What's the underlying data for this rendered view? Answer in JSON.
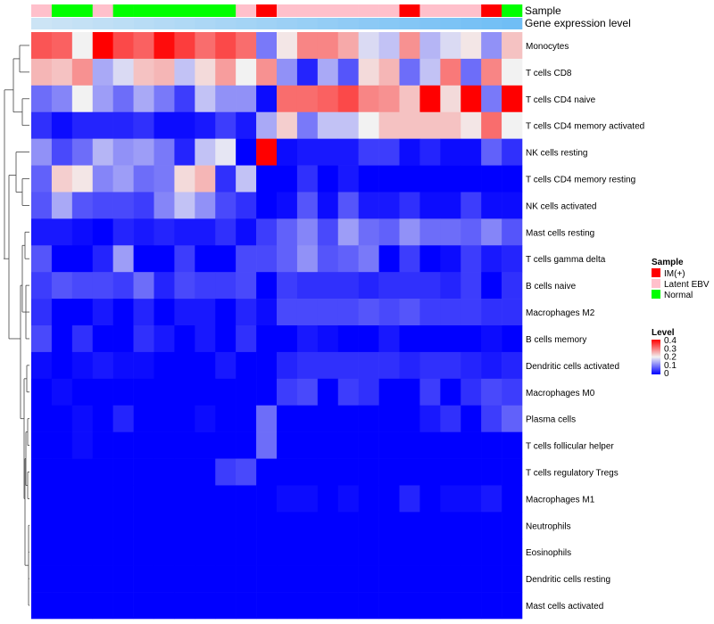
{
  "chart_data": {
    "type": "heatmap",
    "annotation_title": "Sample",
    "expression_bar_label": "Gene expression level",
    "sample_groups": [
      "Latent EBV",
      "Normal",
      "Normal",
      "Latent EBV",
      "Normal",
      "Normal",
      "Normal",
      "Normal",
      "Normal",
      "Normal",
      "Latent EBV",
      "IM(+)",
      "Latent EBV",
      "Latent EBV",
      "Latent EBV",
      "Latent EBV",
      "Latent EBV",
      "Latent EBV",
      "IM(+)",
      "Latent EBV",
      "Latent EBV",
      "Latent EBV",
      "IM(+)",
      "Normal"
    ],
    "expression_bar_colors": [
      "#cce4f5",
      "#c8e2f5",
      "#c4e1f5",
      "#c0dff5",
      "#bcdef5",
      "#b8dcf5",
      "#b4daf5",
      "#b0d9f5",
      "#acd7f5",
      "#a8d5f5",
      "#a4d4f5",
      "#a0d2f5",
      "#9cd0f5",
      "#98cff5",
      "#94cdf5",
      "#90cbf5",
      "#8cc9f5",
      "#88c8f5",
      "#84c6f5",
      "#80c4f5",
      "#7cc3f5",
      "#78c1f5",
      "#74c0f5",
      "#70bef5"
    ],
    "rows": [
      "Monocytes",
      "T cells CD8",
      "T cells CD4 naive",
      "T cells CD4 memory activated",
      "NK cells resting",
      "T cells CD4 memory resting",
      "NK cells activated",
      "Mast cells resting",
      "T cells gamma delta",
      "B cells naive",
      "Macrophages M2",
      "B cells memory",
      "Dendritic cells activated",
      "Macrophages M0",
      "Plasma cells",
      "T cells follicular helper",
      "T cells regulatory  Tregs",
      "Macrophages M1",
      "Neutrophils",
      "Eosinophils",
      "Dendritic cells resting",
      "Mast cells activated"
    ],
    "values": [
      [
        0.33,
        0.32,
        0.2,
        0.4,
        0.34,
        0.32,
        0.39,
        0.35,
        0.31,
        0.34,
        0.31,
        0.1,
        0.21,
        0.29,
        0.29,
        0.26,
        0.18,
        0.16,
        0.28,
        0.15,
        0.18,
        0.21,
        0.12,
        0.24
      ],
      [
        0.25,
        0.24,
        0.28,
        0.14,
        0.18,
        0.24,
        0.25,
        0.16,
        0.22,
        0.27,
        0.2,
        0.28,
        0.12,
        0.03,
        0.14,
        0.07,
        0.22,
        0.25,
        0.09,
        0.16,
        0.3,
        0.09,
        0.29,
        0.2
      ],
      [
        0.09,
        0.11,
        0.2,
        0.13,
        0.09,
        0.14,
        0.1,
        0.05,
        0.16,
        0.12,
        0.12,
        0.01,
        0.31,
        0.31,
        0.32,
        0.34,
        0.29,
        0.28,
        0.24,
        0.4,
        0.22,
        0.4,
        0.1,
        0.4
      ],
      [
        0.04,
        0.01,
        0.03,
        0.03,
        0.03,
        0.04,
        0.01,
        0.01,
        0.02,
        0.05,
        0.02,
        0.14,
        0.23,
        0.1,
        0.16,
        0.16,
        0.2,
        0.24,
        0.24,
        0.24,
        0.24,
        0.21,
        0.31,
        0.2
      ],
      [
        0.12,
        0.06,
        0.09,
        0.15,
        0.12,
        0.13,
        0.1,
        0.03,
        0.16,
        0.19,
        0.0,
        0.4,
        0.01,
        0.02,
        0.02,
        0.02,
        0.05,
        0.05,
        0.01,
        0.03,
        0.01,
        0.01,
        0.08,
        0.04
      ],
      [
        0.08,
        0.23,
        0.21,
        0.11,
        0.13,
        0.09,
        0.1,
        0.22,
        0.25,
        0.04,
        0.16,
        0.0,
        0.0,
        0.04,
        0.0,
        0.02,
        0.0,
        0.0,
        0.0,
        0.0,
        0.0,
        0.0,
        0.0,
        0.0
      ],
      [
        0.07,
        0.14,
        0.07,
        0.06,
        0.06,
        0.05,
        0.11,
        0.16,
        0.12,
        0.06,
        0.04,
        0.0,
        0.01,
        0.07,
        0.01,
        0.07,
        0.02,
        0.02,
        0.04,
        0.01,
        0.01,
        0.05,
        0.01,
        0.01
      ],
      [
        0.02,
        0.02,
        0.01,
        0.0,
        0.03,
        0.02,
        0.03,
        0.02,
        0.02,
        0.04,
        0.01,
        0.05,
        0.08,
        0.11,
        0.06,
        0.13,
        0.09,
        0.08,
        0.12,
        0.09,
        0.09,
        0.08,
        0.11,
        0.07
      ],
      [
        0.07,
        0.0,
        0.0,
        0.03,
        0.13,
        0.0,
        0.0,
        0.05,
        0.0,
        0.0,
        0.06,
        0.06,
        0.08,
        0.12,
        0.07,
        0.08,
        0.1,
        0.0,
        0.05,
        0.0,
        0.01,
        0.05,
        0.02,
        0.03
      ],
      [
        0.05,
        0.07,
        0.06,
        0.06,
        0.05,
        0.09,
        0.03,
        0.06,
        0.05,
        0.05,
        0.06,
        0.0,
        0.05,
        0.04,
        0.04,
        0.04,
        0.03,
        0.04,
        0.04,
        0.04,
        0.03,
        0.05,
        0.0,
        0.04
      ],
      [
        0.04,
        0.0,
        0.0,
        0.02,
        0.0,
        0.03,
        0.0,
        0.02,
        0.02,
        0.0,
        0.03,
        0.01,
        0.06,
        0.06,
        0.06,
        0.06,
        0.07,
        0.06,
        0.07,
        0.05,
        0.05,
        0.05,
        0.04,
        0.04
      ],
      [
        0.06,
        0.0,
        0.04,
        0.0,
        0.0,
        0.04,
        0.02,
        0.0,
        0.02,
        0.0,
        0.04,
        0.0,
        0.0,
        0.02,
        0.01,
        0.0,
        0.0,
        0.02,
        0.0,
        0.0,
        0.0,
        0.0,
        0.01,
        0.0
      ],
      [
        0.01,
        0.0,
        0.01,
        0.02,
        0.01,
        0.01,
        0.0,
        0.0,
        0.0,
        0.02,
        0.0,
        0.0,
        0.03,
        0.04,
        0.04,
        0.04,
        0.04,
        0.04,
        0.03,
        0.04,
        0.04,
        0.03,
        0.02,
        0.03
      ],
      [
        0.0,
        0.01,
        0.0,
        0.0,
        0.0,
        0.0,
        0.0,
        0.0,
        0.0,
        0.0,
        0.0,
        0.0,
        0.05,
        0.06,
        0.0,
        0.05,
        0.04,
        0.0,
        0.0,
        0.05,
        0.0,
        0.04,
        0.06,
        0.05
      ],
      [
        0.0,
        0.0,
        0.01,
        0.0,
        0.03,
        0.0,
        0.0,
        0.0,
        0.01,
        0.0,
        0.0,
        0.09,
        0.0,
        0.0,
        0.0,
        0.0,
        0.0,
        0.0,
        0.0,
        0.02,
        0.04,
        0.0,
        0.05,
        0.08
      ],
      [
        0.0,
        0.0,
        0.01,
        0.0,
        0.0,
        0.0,
        0.0,
        0.0,
        0.0,
        0.0,
        0.0,
        0.09,
        0.0,
        0.0,
        0.0,
        0.0,
        0.0,
        0.0,
        0.0,
        0.0,
        0.0,
        0.0,
        0.0,
        0.0
      ],
      [
        0.0,
        0.0,
        0.0,
        0.0,
        0.0,
        0.0,
        0.0,
        0.0,
        0.0,
        0.05,
        0.06,
        0.0,
        0.0,
        0.0,
        0.0,
        0.0,
        0.0,
        0.0,
        0.0,
        0.0,
        0.0,
        0.0,
        0.0,
        0.0
      ],
      [
        0.0,
        0.0,
        0.0,
        0.0,
        0.0,
        0.0,
        0.0,
        0.0,
        0.0,
        0.0,
        0.0,
        0.0,
        0.01,
        0.01,
        0.0,
        0.01,
        0.0,
        0.0,
        0.03,
        0.0,
        0.01,
        0.01,
        0.02,
        0.0
      ],
      [
        0.0,
        0.0,
        0.0,
        0.0,
        0.0,
        0.0,
        0.0,
        0.0,
        0.0,
        0.0,
        0.0,
        0.0,
        0.0,
        0.0,
        0.0,
        0.0,
        0.0,
        0.0,
        0.0,
        0.0,
        0.0,
        0.0,
        0.0,
        0.0
      ],
      [
        0.0,
        0.0,
        0.0,
        0.0,
        0.0,
        0.0,
        0.0,
        0.0,
        0.0,
        0.0,
        0.0,
        0.0,
        0.0,
        0.0,
        0.0,
        0.0,
        0.0,
        0.0,
        0.0,
        0.0,
        0.0,
        0.0,
        0.0,
        0.0
      ],
      [
        0.0,
        0.0,
        0.0,
        0.0,
        0.0,
        0.0,
        0.0,
        0.0,
        0.0,
        0.0,
        0.0,
        0.0,
        0.0,
        0.0,
        0.0,
        0.0,
        0.0,
        0.0,
        0.0,
        0.0,
        0.0,
        0.0,
        0.0,
        0.0
      ],
      [
        0.0,
        0.0,
        0.0,
        0.0,
        0.0,
        0.0,
        0.0,
        0.0,
        0.0,
        0.0,
        0.0,
        0.0,
        0.0,
        0.0,
        0.0,
        0.0,
        0.0,
        0.0,
        0.0,
        0.0,
        0.0,
        0.0,
        0.0,
        0.0
      ]
    ],
    "legend": {
      "sample_title": "Sample",
      "sample_items": [
        {
          "label": "IM(+)",
          "color": "#ff0000"
        },
        {
          "label": "Latent EBV",
          "color": "#ffc0cb"
        },
        {
          "label": "Normal",
          "color": "#00ff00"
        }
      ],
      "level_title": "Level",
      "level_ticks": [
        "0.4",
        "0.3",
        "0.2",
        "0.1",
        "0"
      ],
      "level_range": [
        0,
        0.4
      ],
      "palette": {
        "low": "#0000ff",
        "mid": "#f2f2f2",
        "high": "#ff0000"
      }
    },
    "dendrogram": "row clustering tree (left)"
  }
}
